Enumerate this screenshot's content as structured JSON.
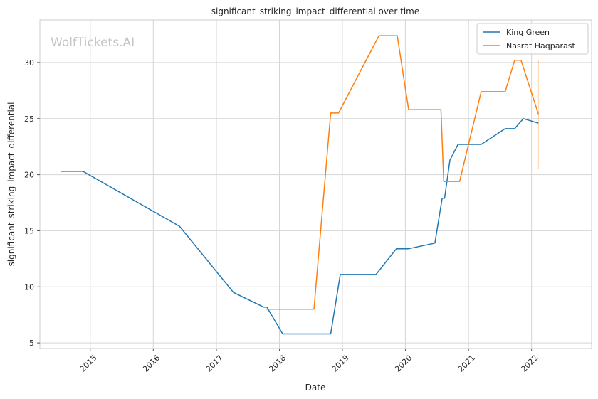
{
  "watermark": "WolfTickets.AI",
  "chart_data": {
    "type": "line",
    "title": "significant_striking_impact_differential over time",
    "xlabel": "Date",
    "ylabel": "significant_striking_impact_differential",
    "xlim": [
      "2014-03-15",
      "2022-12-15"
    ],
    "ylim": [
      4.5,
      33.8
    ],
    "x_ticks": [
      "2015",
      "2016",
      "2017",
      "2018",
      "2019",
      "2020",
      "2021",
      "2022"
    ],
    "y_ticks": [
      5,
      10,
      15,
      20,
      25,
      30
    ],
    "grid": true,
    "legend_position": "top-right",
    "colors": {
      "king": "#1f77b4",
      "nasrat": "#ff7f0e"
    },
    "series": [
      {
        "name": "King Green",
        "color": "#1f77b4",
        "points": [
          [
            "2014-07-15",
            20.3
          ],
          [
            "2014-11-20",
            20.3
          ],
          [
            "2016-06-01",
            15.4
          ],
          [
            "2017-04-10",
            9.5
          ],
          [
            "2017-10-01",
            8.2
          ],
          [
            "2017-10-20",
            8.2
          ],
          [
            "2018-01-20",
            5.8
          ],
          [
            "2018-10-25",
            5.8
          ],
          [
            "2018-12-20",
            11.1
          ],
          [
            "2019-07-15",
            11.1
          ],
          [
            "2019-11-10",
            13.4
          ],
          [
            "2020-01-20",
            13.4
          ],
          [
            "2020-06-20",
            13.9
          ],
          [
            "2020-08-01",
            17.9
          ],
          [
            "2020-08-15",
            17.9
          ],
          [
            "2020-09-15",
            21.3
          ],
          [
            "2020-11-01",
            22.7
          ],
          [
            "2021-03-15",
            22.7
          ],
          [
            "2021-08-01",
            24.1
          ],
          [
            "2021-09-25",
            24.1
          ],
          [
            "2021-11-15",
            25.0
          ],
          [
            "2022-02-10",
            24.6
          ]
        ]
      },
      {
        "name": "Nasrat Haqparast",
        "color": "#ff7f0e",
        "points": [
          [
            "2017-10-15",
            8.0
          ],
          [
            "2018-07-20",
            8.0
          ],
          [
            "2018-10-25",
            25.5
          ],
          [
            "2018-12-10",
            25.5
          ],
          [
            "2019-08-01",
            32.4
          ],
          [
            "2019-11-15",
            32.4
          ],
          [
            "2020-01-20",
            25.8
          ],
          [
            "2020-07-25",
            25.8
          ],
          [
            "2020-08-10",
            19.4
          ],
          [
            "2020-11-10",
            19.4
          ],
          [
            "2021-03-15",
            27.4
          ],
          [
            "2021-08-01",
            27.4
          ],
          [
            "2021-09-25",
            30.2
          ],
          [
            "2021-11-01",
            30.2
          ],
          [
            "2022-02-10",
            25.4
          ]
        ],
        "band": {
          "x": "2022-02-10",
          "y_low": 20.5,
          "y_high": 30.2
        }
      }
    ]
  }
}
